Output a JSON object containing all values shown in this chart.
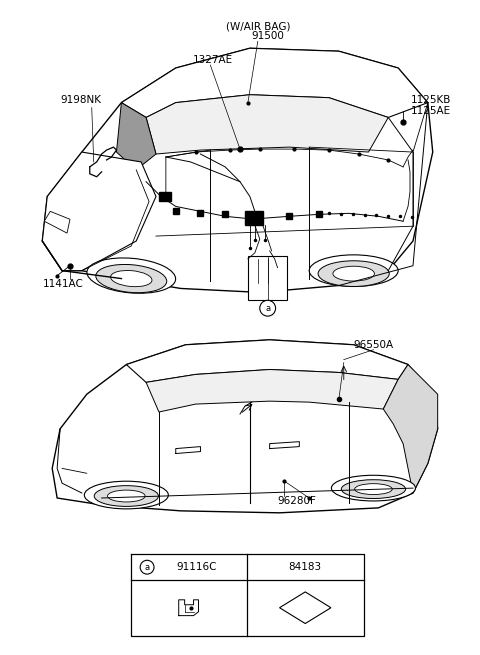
{
  "bg_color": "#ffffff",
  "line_color": "#000000",
  "gray_color": "#888888",
  "fig_width": 4.8,
  "fig_height": 6.55,
  "dpi": 100,
  "top_car": {
    "label_airbag": "(W/AIR BAG)",
    "label_91500": "91500",
    "label_1327AE": "1327AE",
    "label_9198NK": "9198NK",
    "label_1125KB": "1125KB",
    "label_1125AE": "1125AE",
    "label_1141AC": "1141AC",
    "label_a": "a"
  },
  "bottom_car": {
    "label_96550A": "96550A",
    "label_96280F": "96280F"
  },
  "table": {
    "col1_circle": "a",
    "col1_part": "91116C",
    "col2_part": "84183"
  }
}
